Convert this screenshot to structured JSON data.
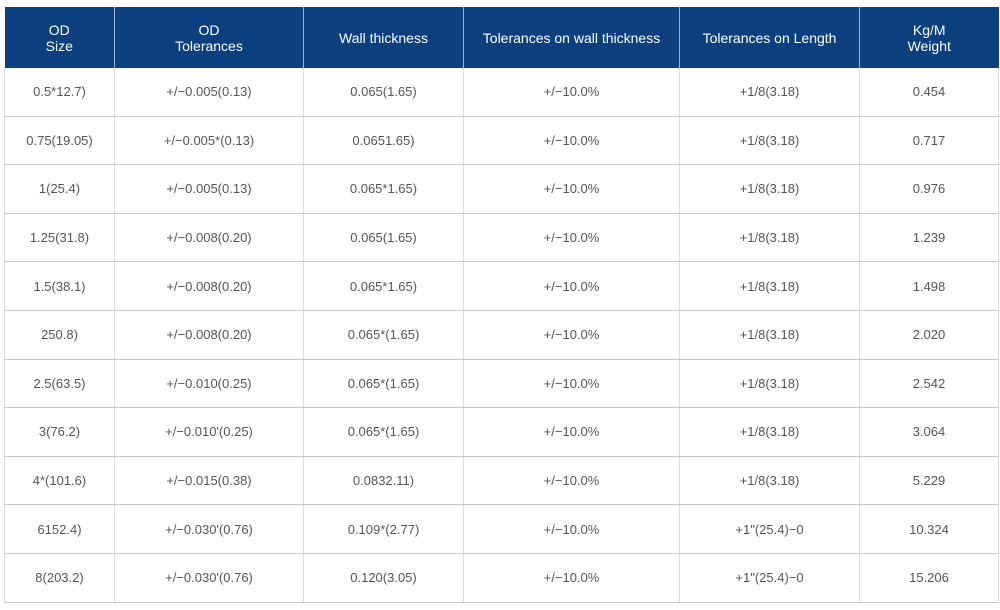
{
  "table": {
    "headers": [
      "OD\nSize",
      "OD\nTolerances",
      "Wall thickness",
      "Tolerances on wall thickness",
      "Tolerances on Length",
      "Kg/M\nWeight"
    ],
    "rows": [
      [
        "0.5*12.7)",
        "+/−0.005(0.13)",
        "0.065(1.65)",
        "+/−10.0%",
        "+1/8(3.18)",
        "0.454"
      ],
      [
        "0.75(19.05)",
        "+/−0.005*(0.13)",
        "0.0651.65)",
        "+/−10.0%",
        "+1/8(3.18)",
        "0.717"
      ],
      [
        "1(25.4)",
        "+/−0.005(0.13)",
        "0.065*1.65)",
        "+/−10.0%",
        "+1/8(3.18)",
        "0.976"
      ],
      [
        "1.25(31.8)",
        "+/−0.008(0.20)",
        "0.065(1.65)",
        "+/−10.0%",
        "+1/8(3.18)",
        "1.239"
      ],
      [
        "1.5(38.1)",
        "+/−0.008(0.20)",
        "0.065*1.65)",
        "+/−10.0%",
        "+1/8(3.18)",
        "1.498"
      ],
      [
        "250.8)",
        "+/−0.008(0.20)",
        "0.065*(1.65)",
        "+/−10.0%",
        "+1/8(3.18)",
        "2.020"
      ],
      [
        "2.5(63.5)",
        "+/−0.010(0.25)",
        "0.065*(1.65)",
        "+/−10.0%",
        "+1/8(3.18)",
        "2.542"
      ],
      [
        "3(76.2)",
        "+/−0.010'(0.25)",
        "0.065*(1.65)",
        "+/−10.0%",
        "+1/8(3.18)",
        "3.064"
      ],
      [
        "4*(101.6)",
        "+/−0.015(0.38)",
        "0.0832.11)",
        "+/−10.0%",
        "+1/8(3.18)",
        "5.229"
      ],
      [
        "6152.4)",
        "+/−0.030'(0.76)",
        "0.109*(2.77)",
        "+/−10.0%",
        "+1\"(25.4)−0",
        "10.324"
      ],
      [
        "8(203.2)",
        "+/−0.030'(0.76)",
        "0.120(3.05)",
        "+/−10.0%",
        "+1\"(25.4)−0",
        "15.206"
      ]
    ]
  },
  "colors": {
    "header_bg": "#0b3f7e",
    "header_text": "#ffffff",
    "cell_text": "#555555",
    "row_border": "#c9c9c9"
  }
}
